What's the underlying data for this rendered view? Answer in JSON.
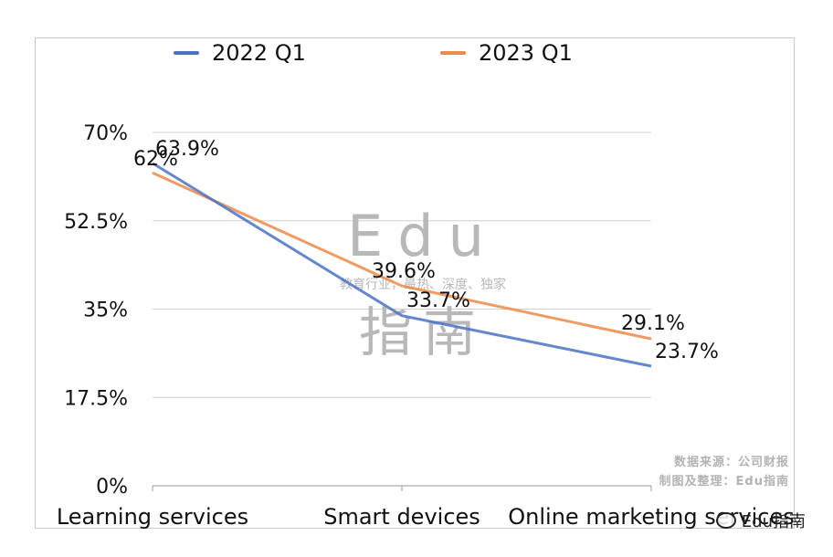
{
  "chart_data": {
    "type": "line",
    "categories": [
      "Learning services",
      "Smart devices",
      "Online marketing services"
    ],
    "series": [
      {
        "name": "2022 Q1",
        "color": "#4a72c4",
        "values": [
          63.9,
          33.7,
          23.7
        ],
        "labels": [
          "63.9%",
          "33.7%",
          "23.7%"
        ]
      },
      {
        "name": "2023 Q1",
        "color": "#ee8a47",
        "values": [
          62,
          39.6,
          29.1
        ],
        "labels": [
          "62%",
          "39.6%",
          "29.1%"
        ]
      }
    ],
    "yticks": [
      "0%",
      "17.5%",
      "35%",
      "52.5%",
      "70%"
    ],
    "ylim": [
      0,
      70
    ],
    "grid": true,
    "legend": "top"
  },
  "watermark": {
    "top": "Edu",
    "middle": "教育行业，最热、深度、独家",
    "bottom": "指南"
  },
  "source": {
    "line1": "数据来源：公司财报",
    "line2": "制图及整理：Edu指南"
  },
  "brand": "Edu指南"
}
